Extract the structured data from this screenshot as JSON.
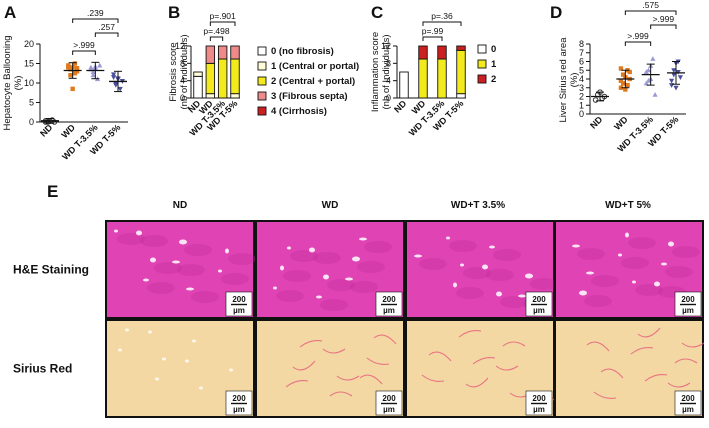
{
  "chart_data": [
    {
      "panel": "A",
      "type": "scatter",
      "ylabel": "Hepatocyte Ballooning (%)",
      "categories": [
        "ND",
        "WD",
        "WD T-3.5%",
        "WD T-5%"
      ],
      "yticks": [
        "0",
        "5",
        "10",
        "15",
        "20"
      ],
      "ylim": [
        0,
        20
      ],
      "colors": [
        "#333333",
        "#e07a1e",
        "#9d9bd6",
        "#4a4f9c"
      ],
      "mean": [
        0.3,
        13.2,
        13.2,
        10.4
      ],
      "sd": [
        0.6,
        2.0,
        2.1,
        2.6
      ],
      "points": [
        [
          0,
          0,
          0.2,
          0.5,
          0,
          0.3
        ],
        [
          14,
          12,
          8.5,
          15,
          13,
          14.5,
          13.5,
          14,
          12.5,
          13.8
        ],
        [
          14,
          12,
          13.8,
          11,
          14.5,
          13.5,
          12.8,
          14.2
        ],
        [
          12.2,
          9.8,
          11,
          8.5,
          10.5,
          11.5,
          9.5,
          11.2
        ]
      ],
      "comparisons": [
        {
          "label": ".239",
          "from": 1,
          "to": 3
        },
        {
          "label": ".257",
          "from": 2,
          "to": 3
        },
        {
          "label": ">.999",
          "from": 1,
          "to": 2
        }
      ]
    },
    {
      "panel": "B",
      "type": "bar",
      "stacked": true,
      "ylabel": "Fibrosis score (nb of Individuals)",
      "categories": [
        "ND",
        "WD",
        "WD T-3.5%",
        "WD T-5%"
      ],
      "yticks": [
        "0",
        "4",
        "8",
        "12"
      ],
      "ylim": [
        0,
        12
      ],
      "series": [
        {
          "name": "0 (no fibrosis)",
          "color": "#ffffff",
          "values": [
            5,
            0,
            0,
            0
          ]
        },
        {
          "name": "1 (Central or portal)",
          "color": "#fffbd6",
          "values": [
            1,
            1,
            0,
            1
          ]
        },
        {
          "name": "2 (Central + portal)",
          "color": "#f2ea1c",
          "values": [
            0,
            7,
            9,
            8
          ]
        },
        {
          "name": "3 (Fibrous septa)",
          "color": "#ee8a8a",
          "values": [
            0,
            4,
            3,
            3
          ]
        },
        {
          "name": "4 (Cirrhosis)",
          "color": "#cc1f1f",
          "values": [
            0,
            0,
            0,
            0
          ]
        }
      ],
      "comparisons": [
        {
          "label": "p=.901",
          "from": 1,
          "to": 3
        },
        {
          "label": "p=.498",
          "from": 1,
          "to": 2
        }
      ]
    },
    {
      "panel": "C",
      "type": "bar",
      "stacked": true,
      "ylabel": "Inflammation score (nb of Individuals)",
      "categories": [
        "ND",
        "WD",
        "WD T-3.5%",
        "WD T-5%"
      ],
      "yticks": [
        "0",
        "4",
        "8",
        "12"
      ],
      "ylim": [
        0,
        12
      ],
      "series": [
        {
          "name": "0",
          "color": "#ffffff",
          "values": [
            6,
            0,
            0,
            1
          ]
        },
        {
          "name": "1",
          "color": "#f2ea1c",
          "values": [
            0,
            9,
            9,
            10
          ]
        },
        {
          "name": "2",
          "color": "#cc1f1f",
          "values": [
            0,
            3,
            3,
            1
          ]
        }
      ],
      "comparisons": [
        {
          "label": "p=.36",
          "from": 1,
          "to": 3
        },
        {
          "label": "p=.99",
          "from": 1,
          "to": 2
        }
      ]
    },
    {
      "panel": "D",
      "type": "scatter",
      "ylabel": "Liver Sirius red area (%)",
      "categories": [
        "ND",
        "WD",
        "WD T-3.5%",
        "WD T-5%"
      ],
      "yticks": [
        "0",
        "1",
        "2",
        "3",
        "4",
        "5",
        "6",
        "7",
        "8"
      ],
      "ylim": [
        0,
        8
      ],
      "colors": [
        "#333333",
        "#e07a1e",
        "#9d9bd6",
        "#4a4f9c"
      ],
      "mean": [
        2.0,
        4.0,
        4.5,
        4.7
      ],
      "sd": [
        0.5,
        1.0,
        1.2,
        1.3
      ],
      "points": [
        [
          1.6,
          2.2,
          2.5,
          1.8,
          2.0
        ],
        [
          3.0,
          3.5,
          4.2,
          5.0,
          4.8,
          3.8,
          4.5,
          2.8,
          3.3,
          4.0,
          5.2
        ],
        [
          3.5,
          5.0,
          4.0,
          6.3,
          2.2,
          4.8,
          3.8,
          5.5
        ],
        [
          3.3,
          4.5,
          5.8,
          6.0,
          4.2,
          3.8,
          5.0,
          3.0,
          4.8
        ]
      ],
      "comparisons": [
        {
          "label": ".575",
          "from": 1,
          "to": 3
        },
        {
          "label": ">.999",
          "from": 2,
          "to": 3
        },
        {
          "label": ">.999",
          "from": 1,
          "to": 2
        }
      ]
    }
  ],
  "panels": {
    "a": "A",
    "b": "B",
    "c": "C",
    "d": "D",
    "e": "E"
  },
  "histology": {
    "columns": [
      "ND",
      "WD",
      "WD+T 3.5%",
      "WD+T 5%"
    ],
    "rows": [
      {
        "label": "H&E Staining",
        "bg": "#e043b3",
        "patch": "#c12d9a"
      },
      {
        "label": "Sirius Red",
        "bg": "#f3d8a3",
        "patch": "#e65a7c"
      }
    ],
    "scalebar": [
      "200",
      "µm"
    ]
  }
}
